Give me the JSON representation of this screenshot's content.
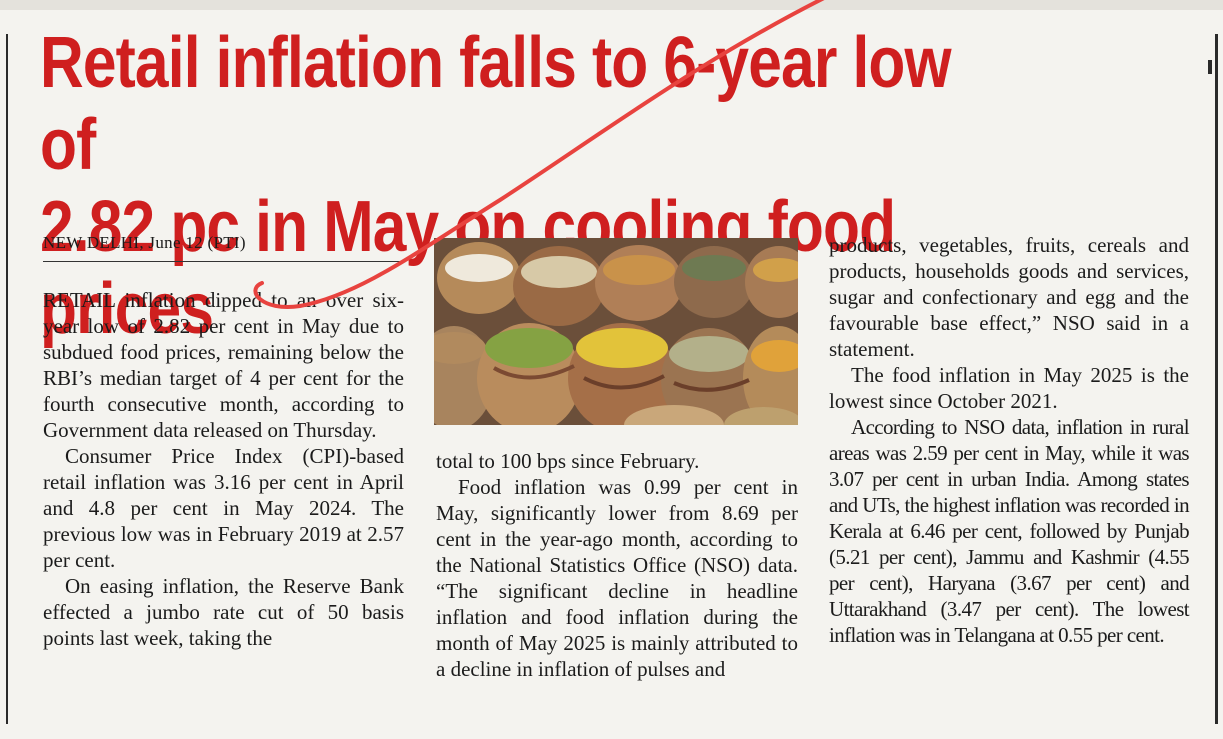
{
  "article": {
    "headline": "Retail inflation falls to 6-year low of\n2.82 pc in May on cooling food prices",
    "dateline": "NEW DELHI, June 12 (PTI)",
    "col1": [
      "RETAIL inflation dipped to an over six-year low of 2.82 per cent in May due to subdued food prices, remaining below the RBI’s median target of 4 per cent for the fourth consecutive month, according to Government data released on Thursday.",
      "Consumer Price Index (CPI)-based retail inflation was 3.16 per cent in April and 4.8 per cent in May 2024. The previous low was in February 2019 at 2.57 per cent.",
      "On easing inflation, the Reserve Bank effected a jumbo rate cut of 50 basis points last week, taking the"
    ],
    "col2": [
      "total to 100 bps since February.",
      "Food inflation was 0.99 per cent in May, significantly lower from 8.69 per cent in the year-ago month, according to the National Statistics Office (NSO) data. “The significant decline in headline inflation and food inflation during the month of May 2025 is mainly attributed to a decline in inflation of pulses and"
    ],
    "col3": [
      "products, vegetables, fruits, cereals and products, households goods and services, sugar and confectionary and egg and the favourable base effect,” NSO said in a statement.",
      "The food inflation in May 2025 is the lowest since October 2021.",
      "According to NSO data, inflation in rural areas was 2.59 per cent in May, while it was 3.07 per cent in urban India. Among states and UTs, the highest inflation was recorded in Kerala at 6.46 per cent, followed by Punjab (5.21 per cent), Jammu and Kashmir (4.55 per cent), Haryana (3.67 per cent) and Uttarakhand (3.47 per cent). The lowest inflation was in Telangana at 0.55 per cent."
    ],
    "photo_icon": "sacks-of-grains-photo"
  },
  "colors": {
    "headline": "#cf1f1f",
    "pen_mark": "#e8433f",
    "paper": "#f4f3ef"
  }
}
